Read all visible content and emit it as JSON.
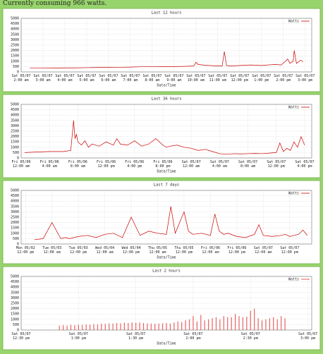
{
  "header": "Currently consuming 966 watts.",
  "chart_data": [
    {
      "type": "line",
      "title": "Last 12 hours",
      "xlabel": "Date/Time",
      "grid": true,
      "legend": "upper right",
      "x": [
        0.4,
        1,
        1.5,
        2,
        2.5,
        3,
        3.5,
        4,
        4.5,
        5,
        5.5,
        6,
        6.5,
        7,
        7.5,
        7.9,
        8,
        8.1,
        8.3,
        8.6,
        9,
        9.2,
        9.3,
        9.4,
        9.6,
        10,
        10.5,
        11,
        11.3,
        11.6,
        11.9,
        12.1,
        12.2,
        12.3,
        12.45,
        12.5,
        12.6,
        12.8,
        12.9
      ],
      "series": [
        {
          "name": "Watts",
          "color": "#cc0000",
          "values": [
            350,
            350,
            360,
            380,
            380,
            400,
            420,
            420,
            430,
            450,
            480,
            480,
            500,
            500,
            520,
            550,
            900,
            700,
            650,
            600,
            550,
            550,
            1900,
            600,
            550,
            600,
            650,
            600,
            650,
            700,
            650,
            1000,
            1200,
            800,
            1000,
            2000,
            800,
            1100,
            950
          ]
        }
      ],
      "xlim": [
        0,
        13.3
      ],
      "xticks": [
        {
          "value": 0,
          "label": "Sat 05/07\n2:00 am"
        },
        {
          "value": 1,
          "label": "Sat 05/07\n3:00 am"
        },
        {
          "value": 2,
          "label": "Sat 05/07\n4:00 am"
        },
        {
          "value": 3,
          "label": "Sat 05/07\n5:00 am"
        },
        {
          "value": 4,
          "label": "Sat 05/07\n6:00 am"
        },
        {
          "value": 5,
          "label": "Sat 05/07\n7:00 am"
        },
        {
          "value": 6,
          "label": "Sat 05/07\n8:00 am"
        },
        {
          "value": 7,
          "label": "Sat 05/07\n9:00 am"
        },
        {
          "value": 8,
          "label": "Sat 05/07\n10:00 am"
        },
        {
          "value": 9,
          "label": "Sat 05/07\n11:00 am"
        },
        {
          "value": 10,
          "label": "Sat 05/07\n12:00 pm"
        },
        {
          "value": 11,
          "label": "Sat 05/07\n1:00 pm"
        },
        {
          "value": 12,
          "label": "Sat 05/07\n2:00 pm"
        },
        {
          "value": 13,
          "label": "Sat 05/07\n3:00 pm"
        }
      ],
      "ylim": [
        0,
        5000
      ],
      "yticks": [
        0,
        500,
        1000,
        1500,
        2000,
        2500,
        3000,
        3500,
        4000,
        4500,
        5000
      ]
    },
    {
      "type": "line",
      "title": "Last 36 hours",
      "xlabel": "Date/Time",
      "grid": true,
      "legend": "upper right",
      "x": [
        0.5,
        2,
        4,
        6,
        7,
        7.4,
        7.6,
        7.8,
        8,
        8.5,
        9,
        9.5,
        10,
        11,
        12,
        13,
        13.5,
        14,
        15,
        16,
        17,
        18,
        19,
        20,
        20.5,
        21,
        22,
        23,
        24,
        25,
        26,
        27,
        28,
        29,
        30,
        31,
        32,
        33,
        34,
        35,
        36,
        36.5,
        37,
        37.5,
        38,
        38.5,
        39,
        39.5,
        40
      ],
      "series": [
        {
          "name": "Watts",
          "color": "#cc0000",
          "values": [
            500,
            550,
            600,
            600,
            700,
            3500,
            1800,
            2200,
            1500,
            1200,
            1600,
            1000,
            1300,
            1100,
            1500,
            1200,
            1800,
            1300,
            1200,
            1600,
            1100,
            1300,
            1800,
            1200,
            1000,
            1100,
            1200,
            1000,
            900,
            700,
            800,
            600,
            400,
            350,
            400,
            380,
            400,
            420,
            400,
            450,
            500,
            1400,
            600,
            900,
            700,
            1500,
            1000,
            2000,
            1200
          ]
        }
      ],
      "xlim": [
        0,
        41
      ],
      "xticks": [
        {
          "value": 0,
          "label": "Fri 05/06\n12:00 am"
        },
        {
          "value": 4,
          "label": "Fri 05/06\n4:00 am"
        },
        {
          "value": 8,
          "label": "Fri 05/06\n8:00 am"
        },
        {
          "value": 12,
          "label": "Fri 05/06\n12:00 pm"
        },
        {
          "value": 16,
          "label": "Fri 05/06\n4:00 pm"
        },
        {
          "value": 20,
          "label": "Fri 05/06\n8:00 pm"
        },
        {
          "value": 24,
          "label": "Sat 05/07\n12:00 am"
        },
        {
          "value": 28,
          "label": "Sat 05/07\n4:00 am"
        },
        {
          "value": 32,
          "label": "Sat 05/07\n8:00 am"
        },
        {
          "value": 36,
          "label": "Sat 05/07\n12:00 pm"
        },
        {
          "value": 40,
          "label": "Sat 05/07\n4:00 pm"
        }
      ],
      "ylim": [
        0,
        5000
      ],
      "yticks": [
        0,
        500,
        1000,
        1500,
        2000,
        2500,
        3000,
        3500,
        4000,
        4500,
        5000
      ]
    },
    {
      "type": "line",
      "title": "Last 7 days",
      "xlabel": "Date/Time",
      "grid": true,
      "legend": "upper right",
      "x": [
        4,
        8,
        12,
        16,
        18,
        20,
        24,
        28,
        32,
        36,
        40,
        44,
        48,
        52,
        56,
        60,
        64,
        66,
        68,
        72,
        74,
        76,
        80,
        84,
        86,
        88,
        90,
        92,
        96,
        100,
        104,
        106,
        108,
        112,
        116,
        118,
        120,
        122,
        124,
        126,
        128
      ],
      "series": [
        {
          "name": "Watts",
          "color": "#cc0000",
          "values": [
            400,
            500,
            2000,
            500,
            600,
            500,
            700,
            800,
            600,
            900,
            1000,
            600,
            2500,
            800,
            1200,
            1000,
            900,
            3500,
            1000,
            3000,
            1200,
            900,
            1000,
            800,
            2800,
            1200,
            900,
            1000,
            700,
            600,
            900,
            1800,
            800,
            700,
            800,
            900,
            700,
            800,
            900,
            1300,
            800
          ]
        }
      ],
      "xlim": [
        -2,
        130
      ],
      "xticks": [
        {
          "value": 0,
          "label": "Mon 05/02\n12:00 pm"
        },
        {
          "value": 12,
          "label": "Tue 05/03\n12:00 am"
        },
        {
          "value": 24,
          "label": "Tue 05/03\n12:00 pm"
        },
        {
          "value": 36,
          "label": "Wed 05/04\n12:00 am"
        },
        {
          "value": 48,
          "label": "Wed 05/04\n12:00 pm"
        },
        {
          "value": 60,
          "label": "Thu 05/05\n12:00 am"
        },
        {
          "value": 72,
          "label": "Thu 05/05\n12:00 pm"
        },
        {
          "value": 84,
          "label": "Fri 05/06\n12:00 am"
        },
        {
          "value": 96,
          "label": "Fri 05/06\n12:00 pm"
        },
        {
          "value": 108,
          "label": "Sat 05/07\n12:00 am"
        },
        {
          "value": 120,
          "label": "Sat 05/07\n12:00 pm"
        }
      ],
      "ylim": [
        0,
        5000
      ],
      "yticks": [
        0,
        500,
        1000,
        1500,
        2000,
        2500,
        3000,
        3500,
        4000,
        4500,
        5000
      ]
    },
    {
      "type": "bar",
      "title": "Last 2 hours",
      "xlabel": "Date/Time",
      "grid": true,
      "legend": "upper right",
      "x": [
        20,
        22,
        24,
        26,
        28,
        30,
        32,
        34,
        36,
        38,
        40,
        42,
        44,
        46,
        48,
        50,
        52,
        54,
        56,
        58,
        60,
        62,
        64,
        66,
        68,
        70,
        72,
        74,
        76,
        78,
        80,
        82,
        84,
        86,
        88,
        90,
        92,
        94,
        96,
        98,
        100,
        102,
        104,
        106,
        108,
        110,
        112,
        114,
        116,
        118,
        120,
        122,
        124,
        126,
        128,
        130,
        132,
        134,
        136,
        138
      ],
      "series": [
        {
          "name": "Watts",
          "color": "#e23030",
          "values": [
            400,
            450,
            420,
            480,
            450,
            500,
            480,
            520,
            500,
            550,
            520,
            600,
            580,
            620,
            600,
            650,
            620,
            680,
            650,
            700,
            680,
            700,
            650,
            620,
            600,
            580,
            600,
            620,
            650,
            600,
            700,
            800,
            750,
            900,
            1000,
            1300,
            800,
            1400,
            900,
            1000,
            1100,
            1200,
            1000,
            1300,
            1200,
            1200,
            1500,
            1300,
            1200,
            1250,
            1800,
            2000,
            1100,
            900,
            1000,
            1100,
            1200,
            1000,
            1300,
            1100
          ]
        }
      ],
      "xlim": [
        0,
        152
      ],
      "xticks": [
        {
          "value": 0,
          "label": "Sat 05/07\n12:30 pm"
        },
        {
          "value": 30,
          "label": "Sat 05/07\n1:00 pm"
        },
        {
          "value": 60,
          "label": "Sat 05/07\n1:30 pm"
        },
        {
          "value": 90,
          "label": "Sat 05/07\n2:00 pm"
        },
        {
          "value": 120,
          "label": "Sat 05/07\n2:30 pm"
        },
        {
          "value": 150,
          "label": "Sat 05/07\n3:00 pm"
        }
      ],
      "ylim": [
        0,
        5000
      ],
      "yticks": [
        0,
        500,
        1000,
        1500,
        2000,
        2500,
        3000,
        3500,
        4000,
        4500,
        5000
      ]
    }
  ]
}
